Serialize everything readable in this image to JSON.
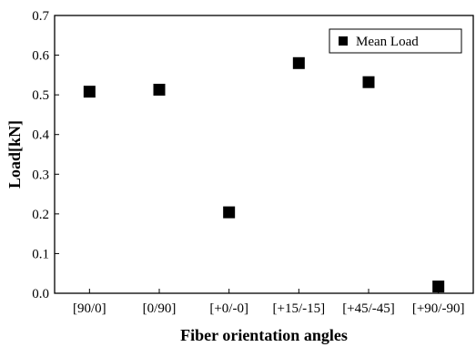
{
  "chart_data": {
    "type": "scatter",
    "categories": [
      "[90/0]",
      "[0/90]",
      "[+0/-0]",
      "[+15/-15]",
      "[+45/-45]",
      "[+90/-90]"
    ],
    "series": [
      {
        "name": "Mean Load",
        "values": [
          0.508,
          0.513,
          0.204,
          0.58,
          0.532,
          0.017
        ]
      }
    ],
    "xlabel": "Fiber orientation angles",
    "ylabel": "Load[kN]",
    "ylim": [
      0.0,
      0.7
    ],
    "yticks": [
      0.0,
      0.1,
      0.2,
      0.3,
      0.4,
      0.5,
      0.6,
      0.7
    ],
    "ytick_labels": [
      "0.0",
      "0.1",
      "0.2",
      "0.3",
      "0.4",
      "0.5",
      "0.6",
      "0.7"
    ],
    "grid": false,
    "legend_position": "top-right",
    "marker": "square",
    "marker_color": "#000000"
  }
}
